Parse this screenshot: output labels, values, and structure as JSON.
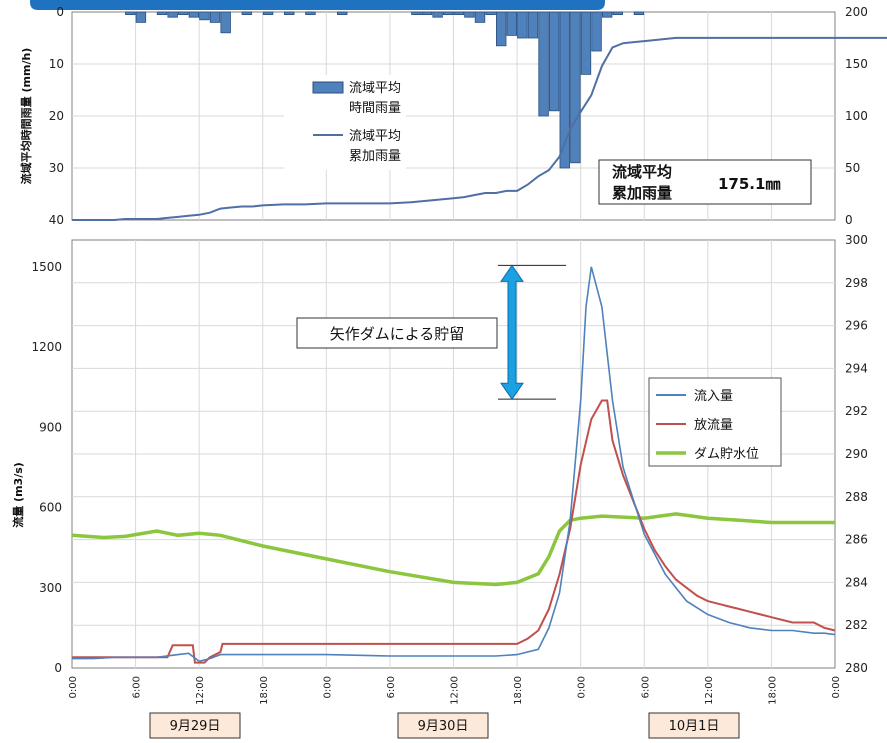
{
  "chart_data": [
    {
      "type": "bar",
      "panel": "rainfall",
      "ylabel": "流域平均時間雨量 (mm/h)",
      "ylim": [
        40,
        0
      ],
      "y_ticks": [
        "0",
        "10",
        "20",
        "30",
        "40"
      ],
      "y2lim": [
        0,
        200
      ],
      "y2_ticks": [
        "0",
        "50",
        "100",
        "150",
        "200"
      ],
      "grid": true,
      "legend_position": "upper-center",
      "x_hours": [
        0,
        4,
        5,
        6,
        7,
        8,
        9,
        10,
        11,
        12,
        13,
        14,
        15,
        16,
        17,
        18,
        19,
        20,
        21,
        22,
        23,
        24,
        25,
        26,
        27,
        28,
        29,
        30,
        31,
        32,
        33,
        34,
        35,
        36,
        37,
        38,
        39,
        40,
        41,
        42,
        43,
        44,
        45,
        46,
        47,
        48,
        49,
        50,
        51,
        52,
        53,
        54
      ],
      "series": [
        {
          "name": "流域平均\n時間雨量",
          "hours": [
            5,
            6,
            8,
            9,
            10,
            11,
            12,
            13,
            14,
            16,
            18,
            20,
            22,
            25,
            32,
            33,
            34,
            35,
            36,
            37,
            38,
            39,
            40,
            41,
            42,
            43,
            44,
            45,
            46,
            47,
            48,
            49,
            50,
            51,
            53
          ],
          "values": [
            0.5,
            2,
            0.5,
            1,
            0.5,
            1,
            1.5,
            2,
            4,
            0.5,
            0.5,
            0.5,
            0.5,
            0.5,
            0.5,
            0.5,
            1,
            0.5,
            0.5,
            1,
            2,
            0.5,
            6.5,
            4.5,
            5,
            5,
            20,
            19,
            30,
            29,
            12,
            7.5,
            1,
            0.5,
            0.5
          ]
        },
        {
          "name": "流域平均\n累加雨量",
          "hours": [
            0,
            4,
            5,
            6,
            8,
            9,
            10,
            11,
            12,
            13,
            14,
            15,
            16,
            17,
            18,
            20,
            22,
            24,
            26,
            28,
            30,
            32,
            33,
            34,
            35,
            36,
            37,
            38,
            39,
            40,
            41,
            42,
            43,
            44,
            45,
            46,
            47,
            48,
            49,
            50,
            51,
            52,
            54,
            57,
            60,
            63,
            66,
            69,
            72,
            75,
            78,
            81,
            82
          ],
          "values": [
            0,
            0,
            1,
            1,
            1,
            2,
            3,
            4,
            5,
            7,
            11,
            12,
            13,
            13,
            14,
            15,
            15,
            16,
            16,
            16,
            16,
            17,
            18,
            19,
            20,
            21,
            22,
            24,
            26,
            26,
            28,
            28,
            34,
            42,
            48,
            61,
            87,
            104,
            120,
            148,
            166,
            170,
            172,
            175.1,
            175.1,
            175.1,
            175.1,
            175.1,
            175.1,
            175.1,
            175.1,
            175.1,
            175.1
          ]
        }
      ],
      "annotation": [
        "流域平均",
        "累加雨量",
        "175.1㎜"
      ]
    },
    {
      "type": "line",
      "panel": "flow",
      "ylabel": "流量 (m3/s)",
      "ylim": [
        0,
        1600
      ],
      "y_ticks": [
        "0",
        "300",
        "600",
        "900",
        "1200",
        "1500"
      ],
      "y2lim": [
        280,
        300
      ],
      "y2_ticks": [
        "280",
        "282",
        "284",
        "286",
        "288",
        "290",
        "292",
        "294",
        "296",
        "298",
        "300"
      ],
      "xlim": [
        0,
        72
      ],
      "x_ticks": [
        "0:00",
        "6:00",
        "12:00",
        "18:00",
        "0:00",
        "6:00",
        "12:00",
        "18:00",
        "0:00",
        "6:00",
        "12:00",
        "18:00",
        "0:00"
      ],
      "grid": true,
      "legend_position": "right",
      "series": [
        {
          "name": "流入量",
          "color": "#4f81bd",
          "x": [
            0,
            2,
            4,
            6,
            8,
            10,
            11,
            12,
            13,
            14,
            18,
            24,
            30,
            36,
            40,
            42,
            44,
            45,
            46,
            47,
            48,
            48.5,
            49,
            50,
            51,
            52,
            54,
            56,
            58,
            60,
            62,
            64,
            66,
            68,
            70,
            71,
            72
          ],
          "values": [
            35,
            35,
            40,
            40,
            40,
            50,
            55,
            25,
            35,
            50,
            50,
            50,
            45,
            45,
            45,
            50,
            70,
            150,
            280,
            550,
            1000,
            1350,
            1500,
            1350,
            1000,
            750,
            500,
            350,
            250,
            200,
            170,
            150,
            140,
            140,
            130,
            130,
            125
          ]
        },
        {
          "name": "放流量",
          "color": "#c0504d",
          "x": [
            0,
            4,
            4.2,
            9,
            9.5,
            11.4,
            11.6,
            12.5,
            13,
            14,
            14.2,
            16,
            20,
            24,
            30,
            36,
            40,
            42,
            43,
            44,
            45,
            46,
            47,
            48,
            49,
            50,
            50.5,
            51,
            52,
            53,
            54,
            55,
            56,
            57,
            58,
            59,
            60,
            61,
            62,
            63,
            64,
            65,
            66,
            67,
            68,
            69,
            70,
            71,
            72
          ],
          "values": [
            40,
            40,
            40,
            40,
            85,
            85,
            20,
            20,
            40,
            60,
            90,
            90,
            90,
            90,
            90,
            90,
            90,
            90,
            110,
            140,
            220,
            350,
            520,
            760,
            930,
            1000,
            1000,
            850,
            720,
            620,
            520,
            440,
            380,
            330,
            300,
            270,
            250,
            240,
            230,
            220,
            210,
            200,
            190,
            180,
            170,
            170,
            170,
            150,
            140
          ]
        },
        {
          "name": "ダム貯水位",
          "color": "#8cc63f",
          "axis": "right",
          "x": [
            0,
            3,
            5,
            8,
            10,
            12,
            14,
            18,
            24,
            30,
            36,
            40,
            42,
            44,
            45,
            46,
            47,
            48,
            50,
            54,
            57,
            60,
            63,
            66,
            69,
            72
          ],
          "values": [
            286.2,
            286.1,
            286.15,
            286.4,
            286.2,
            286.3,
            286.2,
            285.7,
            285.1,
            284.5,
            284,
            283.9,
            284.0,
            284.4,
            285.2,
            286.4,
            286.9,
            287.0,
            287.1,
            287.0,
            287.2,
            287.0,
            286.9,
            286.8,
            286.8,
            286.8
          ]
        }
      ],
      "annotation": "矢作ダムによる貯留",
      "storage_arrow": {
        "from": 1005,
        "to": 1505
      }
    }
  ],
  "dates": [
    "9月29日",
    "9月30日",
    "10月1日"
  ]
}
